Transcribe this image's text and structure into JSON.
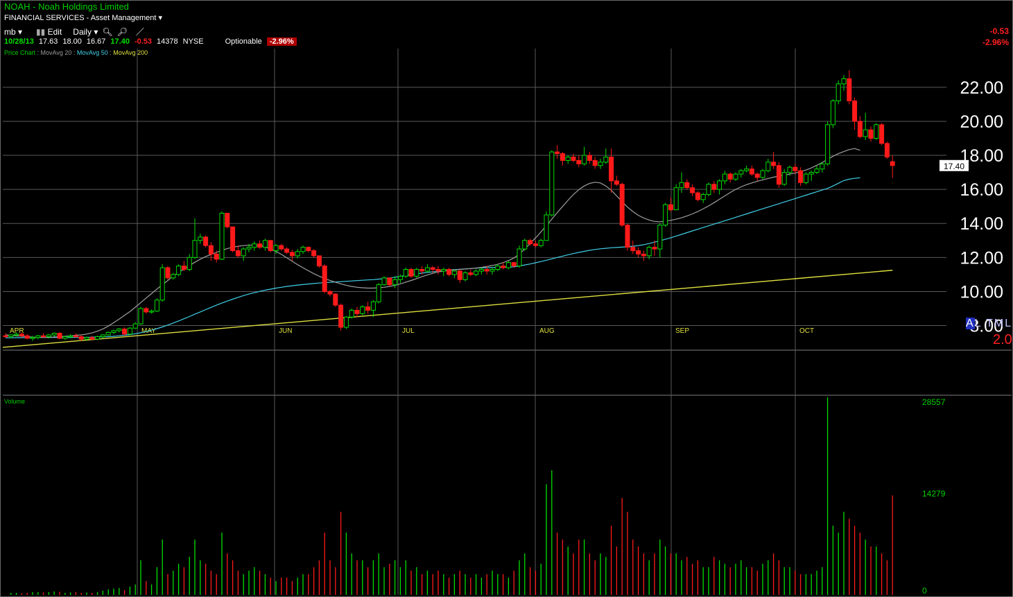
{
  "header": {
    "title": "NOAH - Noah Holdings Limited",
    "sector": "FINANCIAL SERVICES - Asset Management",
    "toolbar": {
      "mb": "mb",
      "edit": "Edit",
      "period": "Daily"
    },
    "quote": {
      "date": "10/28/13",
      "open": "17.63",
      "high": "18.00",
      "low": "16.67",
      "last": "17.40",
      "change": "-0.53",
      "volume": "14378",
      "exchange": "NYSE",
      "optionable": "Optionable",
      "pct": "-2.96%"
    },
    "legend": {
      "price": "Price Chart",
      "ma20": "MovAvg 20",
      "ma50": "MovAvg 50",
      "ma200": "MovAvg 200"
    },
    "right_change": "-0.53",
    "right_pct": "-2.96%",
    "altml": {
      "a": "A",
      "rest": "L TML"
    },
    "big_value": "2.0"
  },
  "colors": {
    "up": "#00e000",
    "down": "#ff1a1a",
    "ma20": "#a0a0a0",
    "ma50": "#40d0e8",
    "ma200": "#e0e040",
    "grid": "#5a5a5a"
  },
  "chart_data": {
    "type": "candlestick",
    "ylim": [
      6.7,
      23.0
    ],
    "y_ticks": [
      "22.00",
      "20.00",
      "18.00",
      "16.00",
      "14.00",
      "12.00",
      "10.00",
      "8.00"
    ],
    "months": [
      "APR",
      "MAY",
      "JUN",
      "JUL",
      "AUG",
      "SEP",
      "OCT"
    ],
    "last_price_label": "17.40",
    "volume_label": "Volume",
    "volume_ticks": [
      "28557",
      "14279",
      "0"
    ],
    "volume_max": 28557,
    "candles": [
      [
        7.4,
        7.55,
        7.3,
        7.35,
        0
      ],
      [
        7.35,
        7.5,
        7.25,
        7.45,
        300
      ],
      [
        7.45,
        7.6,
        7.35,
        7.5,
        300
      ],
      [
        7.5,
        7.6,
        7.3,
        7.4,
        250
      ],
      [
        7.4,
        7.5,
        7.2,
        7.25,
        300
      ],
      [
        7.25,
        7.4,
        7.1,
        7.3,
        400
      ],
      [
        7.3,
        7.45,
        7.2,
        7.4,
        400
      ],
      [
        7.4,
        7.55,
        7.3,
        7.35,
        350
      ],
      [
        7.35,
        7.5,
        7.25,
        7.45,
        400
      ],
      [
        7.45,
        7.6,
        7.35,
        7.55,
        500
      ],
      [
        7.55,
        7.6,
        7.2,
        7.25,
        450
      ],
      [
        7.25,
        7.4,
        7.15,
        7.35,
        300
      ],
      [
        7.35,
        7.5,
        7.25,
        7.4,
        350
      ],
      [
        7.4,
        7.55,
        7.3,
        7.35,
        400
      ],
      [
        7.35,
        7.45,
        7.1,
        7.2,
        300
      ],
      [
        7.2,
        7.35,
        7.1,
        7.3,
        350
      ],
      [
        7.3,
        7.4,
        7.15,
        7.2,
        300
      ],
      [
        7.2,
        7.4,
        7.15,
        7.35,
        400
      ],
      [
        7.35,
        7.5,
        7.25,
        7.45,
        600
      ],
      [
        7.45,
        7.65,
        7.4,
        7.6,
        800
      ],
      [
        7.6,
        7.75,
        7.5,
        7.7,
        900
      ],
      [
        7.7,
        7.85,
        7.6,
        7.8,
        1000
      ],
      [
        7.8,
        7.9,
        7.4,
        7.5,
        700
      ],
      [
        7.5,
        7.9,
        7.45,
        7.85,
        1200
      ],
      [
        7.85,
        8.2,
        7.8,
        8.1,
        1500
      ],
      [
        8.1,
        9.1,
        8.05,
        9.0,
        5000
      ],
      [
        9.0,
        9.1,
        8.7,
        8.8,
        2000
      ],
      [
        8.8,
        8.95,
        8.7,
        8.85,
        1500
      ],
      [
        8.85,
        9.6,
        8.8,
        9.5,
        4000
      ],
      [
        9.5,
        11.6,
        9.4,
        11.4,
        8000
      ],
      [
        11.4,
        11.5,
        10.7,
        10.8,
        3000
      ],
      [
        10.8,
        11.1,
        10.7,
        11.0,
        3500
      ],
      [
        11.0,
        11.6,
        10.9,
        11.5,
        4500
      ],
      [
        11.5,
        11.8,
        11.2,
        11.3,
        4000
      ],
      [
        11.3,
        12.2,
        11.2,
        12.0,
        5500
      ],
      [
        12.0,
        14.3,
        11.9,
        13.0,
        8000
      ],
      [
        13.0,
        13.4,
        12.8,
        13.2,
        5000
      ],
      [
        13.2,
        13.3,
        12.6,
        12.7,
        4500
      ],
      [
        12.7,
        12.9,
        11.8,
        12.2,
        3500
      ],
      [
        12.2,
        12.4,
        11.7,
        11.9,
        3000
      ],
      [
        11.9,
        14.7,
        11.85,
        14.6,
        9000
      ],
      [
        14.6,
        14.6,
        13.7,
        13.8,
        6000
      ],
      [
        13.8,
        13.8,
        12.3,
        12.4,
        5000
      ],
      [
        12.4,
        12.7,
        12.0,
        12.1,
        3500
      ],
      [
        12.1,
        12.6,
        11.8,
        12.5,
        3000
      ],
      [
        12.5,
        12.8,
        12.3,
        12.6,
        3500
      ],
      [
        12.6,
        12.95,
        12.4,
        12.8,
        4000
      ],
      [
        12.8,
        13.0,
        12.5,
        12.6,
        3500
      ],
      [
        12.6,
        13.1,
        12.4,
        13.0,
        3000
      ],
      [
        13.0,
        13.0,
        12.3,
        12.4,
        2500
      ],
      [
        12.4,
        12.8,
        12.2,
        12.7,
        2000
      ],
      [
        12.7,
        12.8,
        12.4,
        12.5,
        2500
      ],
      [
        12.5,
        12.6,
        12.2,
        12.3,
        2500
      ],
      [
        12.3,
        12.45,
        11.8,
        12.1,
        2000
      ],
      [
        12.1,
        12.5,
        11.95,
        12.35,
        2500
      ],
      [
        12.35,
        12.7,
        12.2,
        12.6,
        3000
      ],
      [
        12.6,
        12.65,
        12.3,
        12.4,
        3000
      ],
      [
        12.4,
        12.5,
        12.0,
        12.1,
        4000
      ],
      [
        12.1,
        12.1,
        11.4,
        11.5,
        5000
      ],
      [
        11.5,
        11.6,
        9.9,
        10.0,
        9000
      ],
      [
        10.0,
        10.1,
        9.7,
        9.85,
        5000
      ],
      [
        9.85,
        9.9,
        9.1,
        9.2,
        4000
      ],
      [
        9.2,
        9.3,
        7.7,
        7.9,
        12000
      ],
      [
        7.9,
        8.55,
        7.8,
        8.5,
        9000
      ],
      [
        8.5,
        9.0,
        8.4,
        8.9,
        6000
      ],
      [
        8.9,
        9.1,
        8.5,
        8.7,
        5000
      ],
      [
        8.7,
        9.2,
        8.6,
        9.1,
        5000
      ],
      [
        9.1,
        9.4,
        8.7,
        8.9,
        4000
      ],
      [
        8.9,
        9.5,
        8.5,
        9.4,
        5000
      ],
      [
        9.4,
        10.5,
        9.3,
        10.4,
        6000
      ],
      [
        10.4,
        10.9,
        10.35,
        10.8,
        4000
      ],
      [
        10.8,
        10.8,
        10.3,
        10.4,
        4500
      ],
      [
        10.4,
        10.9,
        10.2,
        10.7,
        5000
      ],
      [
        10.7,
        11.0,
        10.5,
        10.9,
        4000
      ],
      [
        10.9,
        11.4,
        10.8,
        11.3,
        5000
      ],
      [
        11.3,
        11.4,
        10.8,
        10.9,
        3500
      ],
      [
        10.9,
        11.4,
        10.8,
        11.3,
        4000
      ],
      [
        11.3,
        11.5,
        11.0,
        11.2,
        3000
      ],
      [
        11.2,
        11.6,
        11.1,
        11.4,
        3500
      ],
      [
        11.4,
        11.5,
        11.1,
        11.3,
        3000
      ],
      [
        11.3,
        11.5,
        11.0,
        11.2,
        3500
      ],
      [
        11.2,
        11.4,
        10.9,
        11.3,
        3000
      ],
      [
        11.3,
        11.4,
        10.9,
        11.0,
        2500
      ],
      [
        11.0,
        11.3,
        10.8,
        11.2,
        3000
      ],
      [
        11.2,
        11.3,
        10.5,
        10.7,
        3500
      ],
      [
        10.7,
        11.2,
        10.6,
        11.1,
        3000
      ],
      [
        11.1,
        11.3,
        10.9,
        11.0,
        2500
      ],
      [
        11.0,
        11.3,
        10.9,
        11.2,
        3000
      ],
      [
        11.2,
        11.4,
        11.0,
        11.3,
        2500
      ],
      [
        11.3,
        11.5,
        11.0,
        11.2,
        3000
      ],
      [
        11.2,
        11.4,
        11.0,
        11.3,
        3500
      ],
      [
        11.3,
        11.6,
        11.2,
        11.5,
        3000
      ],
      [
        11.5,
        11.7,
        11.3,
        11.4,
        3000
      ],
      [
        11.4,
        11.8,
        11.3,
        11.7,
        2500
      ],
      [
        11.7,
        11.75,
        11.4,
        11.5,
        3500
      ],
      [
        11.5,
        12.7,
        11.4,
        12.5,
        5000
      ],
      [
        12.5,
        13.1,
        12.4,
        13.0,
        6000
      ],
      [
        13.0,
        13.1,
        12.7,
        12.8,
        4000
      ],
      [
        12.8,
        13.0,
        12.6,
        12.7,
        3500
      ],
      [
        12.7,
        13.1,
        12.6,
        13.0,
        4500
      ],
      [
        13.0,
        14.7,
        13.0,
        14.5,
        16000
      ],
      [
        14.5,
        18.3,
        14.4,
        18.2,
        18000
      ],
      [
        18.2,
        18.6,
        17.8,
        18.1,
        9000
      ],
      [
        18.1,
        18.2,
        17.4,
        17.7,
        8000
      ],
      [
        17.7,
        18.0,
        17.5,
        17.9,
        7000
      ],
      [
        17.9,
        18.1,
        17.6,
        17.7,
        6000
      ],
      [
        17.7,
        18.0,
        17.3,
        17.5,
        8000
      ],
      [
        17.5,
        18.5,
        17.4,
        18.0,
        8000
      ],
      [
        18.0,
        18.2,
        17.5,
        17.7,
        6000
      ],
      [
        17.7,
        17.9,
        17.2,
        17.4,
        5000
      ],
      [
        17.4,
        17.8,
        17.2,
        17.6,
        6000
      ],
      [
        17.6,
        18.4,
        17.5,
        17.9,
        5500
      ],
      [
        17.9,
        18.4,
        15.8,
        16.5,
        10000
      ],
      [
        16.5,
        16.8,
        16.2,
        16.3,
        7000
      ],
      [
        16.3,
        16.4,
        13.8,
        13.9,
        14000
      ],
      [
        13.9,
        14.0,
        12.4,
        12.6,
        12000
      ],
      [
        12.6,
        13.0,
        12.2,
        12.4,
        8000
      ],
      [
        12.4,
        12.6,
        12.0,
        12.2,
        7000
      ],
      [
        12.2,
        12.4,
        11.8,
        12.1,
        6000
      ],
      [
        12.1,
        12.7,
        11.9,
        12.6,
        5000
      ],
      [
        12.6,
        13.0,
        12.1,
        12.5,
        6000
      ],
      [
        12.5,
        14.0,
        12.0,
        13.9,
        8000
      ],
      [
        13.9,
        15.2,
        13.8,
        15.1,
        7000
      ],
      [
        15.1,
        15.5,
        14.7,
        14.8,
        6000
      ],
      [
        14.8,
        16.3,
        14.8,
        16.1,
        6000
      ],
      [
        16.1,
        17.0,
        15.8,
        16.4,
        5000
      ],
      [
        16.4,
        16.6,
        16.0,
        16.1,
        5500
      ],
      [
        16.1,
        16.3,
        15.6,
        15.8,
        4500
      ],
      [
        15.8,
        15.9,
        15.3,
        15.4,
        5000
      ],
      [
        15.4,
        15.8,
        15.2,
        15.7,
        4000
      ],
      [
        15.7,
        16.4,
        15.6,
        16.3,
        4000
      ],
      [
        16.3,
        16.5,
        15.8,
        16.0,
        5500
      ],
      [
        16.0,
        16.6,
        15.7,
        16.5,
        5000
      ],
      [
        16.5,
        17.1,
        16.3,
        16.9,
        4500
      ],
      [
        16.9,
        17.0,
        16.4,
        16.6,
        4000
      ],
      [
        16.6,
        17.0,
        16.5,
        16.9,
        4500
      ],
      [
        16.9,
        17.2,
        16.7,
        17.1,
        5000
      ],
      [
        17.1,
        17.4,
        17.0,
        17.2,
        4000
      ],
      [
        17.2,
        17.4,
        16.8,
        16.9,
        4000
      ],
      [
        16.9,
        17.0,
        16.5,
        16.7,
        3500
      ],
      [
        16.7,
        17.2,
        16.6,
        17.1,
        4500
      ],
      [
        17.1,
        17.8,
        17.0,
        17.6,
        5000
      ],
      [
        17.6,
        18.2,
        17.2,
        17.4,
        6000
      ],
      [
        17.4,
        17.6,
        16.1,
        16.3,
        5000
      ],
      [
        16.3,
        17.2,
        16.2,
        17.0,
        4000
      ],
      [
        17.0,
        17.4,
        16.8,
        17.3,
        4000
      ],
      [
        17.3,
        17.5,
        16.9,
        17.1,
        3500
      ],
      [
        17.1,
        17.3,
        16.2,
        16.4,
        3000
      ],
      [
        16.4,
        17.0,
        16.3,
        16.9,
        3000
      ],
      [
        16.9,
        17.1,
        16.5,
        17.0,
        3000
      ],
      [
        17.0,
        17.4,
        16.9,
        17.2,
        3500
      ],
      [
        17.2,
        17.6,
        17.0,
        17.5,
        4000
      ],
      [
        17.5,
        20.0,
        17.4,
        19.8,
        28557
      ],
      [
        19.8,
        21.3,
        19.6,
        21.2,
        10000
      ],
      [
        21.2,
        22.4,
        21.0,
        22.2,
        9000
      ],
      [
        22.2,
        22.7,
        21.8,
        22.5,
        12000
      ],
      [
        22.5,
        23.0,
        21.0,
        21.2,
        11000
      ],
      [
        21.2,
        21.4,
        19.5,
        20.0,
        10000
      ],
      [
        20.0,
        20.3,
        19.0,
        19.1,
        9000
      ],
      [
        19.1,
        20.5,
        18.9,
        19.5,
        8000
      ],
      [
        19.5,
        19.7,
        18.8,
        19.0,
        7000
      ],
      [
        19.0,
        19.9,
        18.9,
        19.8,
        7000
      ],
      [
        19.8,
        19.9,
        18.6,
        18.7,
        6000
      ],
      [
        18.7,
        18.8,
        17.8,
        17.9,
        5000
      ],
      [
        17.63,
        18.0,
        16.67,
        17.4,
        14378
      ]
    ],
    "ma20": [
      7.45,
      7.43,
      7.4,
      7.38,
      7.35,
      7.32,
      7.3,
      7.3,
      7.31,
      7.33,
      7.35,
      7.37,
      7.4,
      7.43,
      7.45,
      7.5,
      7.57,
      7.67,
      7.8,
      7.97,
      8.17,
      8.38,
      8.6,
      8.82,
      9.08,
      9.35,
      9.62,
      9.88,
      10.15,
      10.4,
      10.65,
      10.9,
      11.12,
      11.32,
      11.52,
      11.72,
      11.9,
      12.05,
      12.18,
      12.3,
      12.42,
      12.52,
      12.6,
      12.66,
      12.7,
      12.72,
      12.72,
      12.7,
      12.62,
      12.5,
      12.35,
      12.18,
      11.98,
      11.78,
      11.58,
      11.4,
      11.22,
      11.05,
      10.9,
      10.77,
      10.65,
      10.55,
      10.45,
      10.37,
      10.3,
      10.25,
      10.22,
      10.2,
      10.2,
      10.22,
      10.25,
      10.3,
      10.36,
      10.45,
      10.55,
      10.65,
      10.76,
      10.87,
      10.98,
      11.07,
      11.15,
      11.2,
      11.24,
      11.27,
      11.3,
      11.32,
      11.35,
      11.38,
      11.42,
      11.47,
      11.53,
      11.6,
      11.7,
      11.82,
      11.97,
      12.2,
      12.5,
      12.82,
      13.15,
      13.5,
      13.87,
      14.25,
      14.63,
      15.0,
      15.36,
      15.7,
      15.98,
      16.2,
      16.35,
      16.42,
      16.38,
      16.2,
      15.95,
      15.62,
      15.28,
      14.96,
      14.7,
      14.48,
      14.32,
      14.2,
      14.12,
      14.1,
      14.13,
      14.18,
      14.25,
      14.33,
      14.44,
      14.56,
      14.7,
      14.86,
      15.03,
      15.22,
      15.42,
      15.62,
      15.82,
      16.0,
      16.15,
      16.28,
      16.38,
      16.48,
      16.56,
      16.64,
      16.72,
      16.78,
      16.84,
      16.9,
      16.96,
      17.04,
      17.14,
      17.26,
      17.42,
      17.58,
      17.76,
      17.95,
      18.1,
      18.22,
      18.34,
      18.4,
      18.3
    ],
    "ma50": [
      7.28,
      7.28,
      7.29,
      7.29,
      7.3,
      7.3,
      7.3,
      7.3,
      7.3,
      7.3,
      7.3,
      7.3,
      7.3,
      7.3,
      7.3,
      7.31,
      7.32,
      7.33,
      7.34,
      7.35,
      7.37,
      7.4,
      7.43,
      7.47,
      7.52,
      7.58,
      7.65,
      7.73,
      7.82,
      7.92,
      8.03,
      8.15,
      8.27,
      8.4,
      8.53,
      8.67,
      8.8,
      8.94,
      9.07,
      9.2,
      9.32,
      9.44,
      9.55,
      9.66,
      9.76,
      9.85,
      9.93,
      10.01,
      10.08,
      10.14,
      10.2,
      10.25,
      10.3,
      10.34,
      10.38,
      10.41,
      10.44,
      10.47,
      10.5,
      10.52,
      10.54,
      10.56,
      10.58,
      10.6,
      10.62,
      10.64,
      10.66,
      10.68,
      10.7,
      10.73,
      10.76,
      10.8,
      10.84,
      10.89,
      10.94,
      10.99,
      11.04,
      11.08,
      11.12,
      11.16,
      11.2,
      11.23,
      11.26,
      11.29,
      11.31,
      11.33,
      11.35,
      11.37,
      11.39,
      11.4,
      11.41,
      11.42,
      11.43,
      11.44,
      11.45,
      11.5,
      11.56,
      11.62,
      11.69,
      11.76,
      11.84,
      11.92,
      12.0,
      12.08,
      12.16,
      12.23,
      12.3,
      12.36,
      12.42,
      12.47,
      12.51,
      12.54,
      12.57,
      12.59,
      12.61,
      12.63,
      12.66,
      12.7,
      12.75,
      12.82,
      12.9,
      12.98,
      13.07,
      13.16,
      13.26,
      13.36,
      13.46,
      13.56,
      13.66,
      13.76,
      13.86,
      13.96,
      14.06,
      14.16,
      14.26,
      14.36,
      14.46,
      14.56,
      14.66,
      14.76,
      14.86,
      14.96,
      15.06,
      15.16,
      15.26,
      15.36,
      15.46,
      15.56,
      15.66,
      15.76,
      15.86,
      15.96,
      16.06,
      16.2,
      16.36,
      16.52,
      16.6,
      16.65,
      16.68
    ],
    "ma200_start": 6.72,
    "ma200_end": 11.25
  }
}
